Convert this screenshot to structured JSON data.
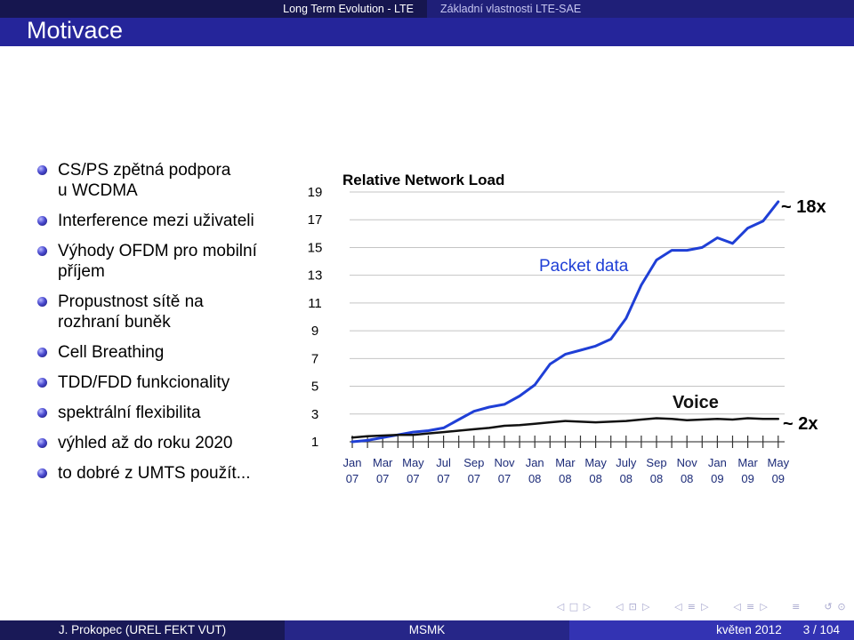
{
  "header": {
    "section": "Long Term Evolution - LTE",
    "subsection": "Základní vlastnosti LTE-SAE",
    "frame_title": "Motivace"
  },
  "bullets": [
    {
      "lines": [
        "CS/PS zpětná podpora",
        "u WCDMA"
      ]
    },
    {
      "lines": [
        "Interference mezi uživateli"
      ]
    },
    {
      "lines": [
        "Výhody OFDM pro mobilní",
        "příjem"
      ]
    },
    {
      "lines": [
        "Propustnost sítě na",
        "rozhraní buněk"
      ]
    },
    {
      "lines": [
        "Cell Breathing"
      ]
    },
    {
      "lines": [
        "TDD/FDD funkcionality"
      ]
    },
    {
      "lines": [
        "spektrální flexibilita"
      ]
    },
    {
      "lines": [
        "výhled až do roku 2020"
      ]
    },
    {
      "lines": [
        "to dobré z UMTS použít..."
      ]
    }
  ],
  "chart_data": {
    "type": "line",
    "title": "Relative Network Load",
    "xlabel": "",
    "ylabel": "",
    "grid": true,
    "xlim": [
      "2007-01",
      "2009-05"
    ],
    "ylim": [
      1,
      19
    ],
    "y_ticks": [
      19,
      17,
      15,
      13,
      11,
      9,
      7,
      5,
      3,
      1
    ],
    "x_ticks": [
      {
        "month": "Jan",
        "year": "07",
        "date": "2007-01"
      },
      {
        "month": "Mar",
        "year": "07",
        "date": "2007-03"
      },
      {
        "month": "May",
        "year": "07",
        "date": "2007-05"
      },
      {
        "month": "Jul",
        "year": "07",
        "date": "2007-07"
      },
      {
        "month": "Sep",
        "year": "07",
        "date": "2007-09"
      },
      {
        "month": "Nov",
        "year": "07",
        "date": "2007-11"
      },
      {
        "month": "Jan",
        "year": "08",
        "date": "2008-01"
      },
      {
        "month": "Mar",
        "year": "08",
        "date": "2008-03"
      },
      {
        "month": "May",
        "year": "08",
        "date": "2008-05"
      },
      {
        "month": "July",
        "year": "08",
        "date": "2008-07"
      },
      {
        "month": "Sep",
        "year": "08",
        "date": "2008-09"
      },
      {
        "month": "Nov",
        "year": "08",
        "date": "2008-11"
      },
      {
        "month": "Jan",
        "year": "09",
        "date": "2009-01"
      },
      {
        "month": "Mar",
        "year": "09",
        "date": "2009-03"
      },
      {
        "month": "May",
        "year": "09",
        "date": "2009-05"
      }
    ],
    "x": [
      "2007-01",
      "2007-02",
      "2007-03",
      "2007-04",
      "2007-05",
      "2007-06",
      "2007-07",
      "2007-08",
      "2007-09",
      "2007-10",
      "2007-11",
      "2007-12",
      "2008-01",
      "2008-02",
      "2008-03",
      "2008-04",
      "2008-05",
      "2008-06",
      "2008-07",
      "2008-08",
      "2008-09",
      "2008-10",
      "2008-11",
      "2008-12",
      "2009-01",
      "2009-02",
      "2009-03",
      "2009-04",
      "2009-05"
    ],
    "series": [
      {
        "name": "Packet data",
        "color": "#1f3fd6",
        "values": [
          1.0,
          1.1,
          1.3,
          1.5,
          1.7,
          1.8,
          2.0,
          2.6,
          3.2,
          3.5,
          3.7,
          4.3,
          5.1,
          6.6,
          7.3,
          7.6,
          7.9,
          8.4,
          9.9,
          12.3,
          14.1,
          14.8,
          14.8,
          15.0,
          15.7,
          15.3,
          16.4,
          16.9,
          18.3
        ]
      },
      {
        "name": "Voice",
        "color": "#111111",
        "values": [
          1.3,
          1.4,
          1.45,
          1.5,
          1.5,
          1.6,
          1.7,
          1.8,
          1.9,
          2.0,
          2.15,
          2.2,
          2.3,
          2.4,
          2.5,
          2.45,
          2.4,
          2.45,
          2.5,
          2.6,
          2.7,
          2.65,
          2.55,
          2.6,
          2.65,
          2.6,
          2.7,
          2.65,
          2.65
        ]
      }
    ],
    "annotations": [
      "~ 18x",
      "~ 2x"
    ],
    "x_tick_color": "#1c2b78"
  },
  "navigation": {
    "groups": [
      [
        "nav-slide-prev-icon",
        "nav-slide-icon",
        "nav-slide-next-icon"
      ],
      [
        "nav-frame-prev-icon",
        "nav-frame-icon",
        "nav-frame-next-icon"
      ],
      [
        "nav-subsection-prev-icon",
        "nav-subsection-icon",
        "nav-subsection-next-icon"
      ],
      [
        "nav-section-prev-icon",
        "nav-section-icon",
        "nav-section-next-icon"
      ],
      [
        "nav-document-icon"
      ],
      [
        "nav-back-forward-icon",
        "nav-search-icon"
      ]
    ]
  },
  "footer": {
    "author": "J. Prokopec (UREL FEKT VUT)",
    "short_title": "MSMK",
    "date": "květen 2012",
    "page": "3 / 104"
  },
  "colors": {
    "headline_section_bg": "#16164f",
    "headline_subsection_bg": "#1f1f78",
    "frametitle_bg": "#25259a",
    "footer_author_bg": "#191957",
    "footer_title_bg": "#262688",
    "footer_date_bg": "#3333b3"
  }
}
